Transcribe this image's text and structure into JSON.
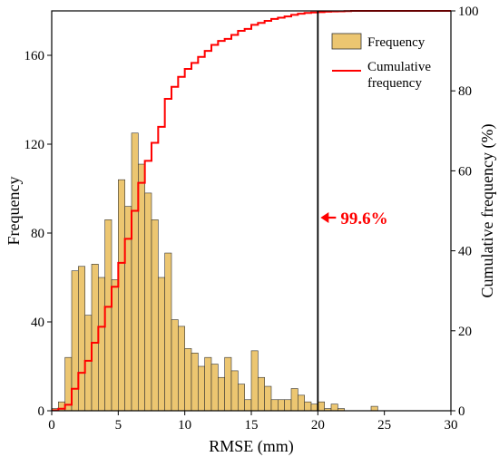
{
  "chart_data": {
    "type": "bar",
    "title": "",
    "xlabel": "RMSE (mm)",
    "ylabel": "Frequency",
    "ylabel_right": "Cumulative frequency (%)",
    "xlim": [
      0,
      30
    ],
    "ylim": [
      0,
      180
    ],
    "ylim_right": [
      0,
      100
    ],
    "x_ticks": [
      0,
      5,
      10,
      15,
      20,
      25,
      30
    ],
    "y_ticks": [
      0,
      40,
      80,
      120,
      160
    ],
    "y_ticks_right": [
      0,
      20,
      40,
      60,
      80,
      100
    ],
    "bin_width": 0.5,
    "bin_starts": [
      0,
      0.5,
      1,
      1.5,
      2,
      2.5,
      3,
      3.5,
      4,
      4.5,
      5,
      5.5,
      6,
      6.5,
      7,
      7.5,
      8,
      8.5,
      9,
      9.5,
      10,
      10.5,
      11,
      11.5,
      12,
      12.5,
      13,
      13.5,
      14,
      14.5,
      15,
      15.5,
      16,
      16.5,
      17,
      17.5,
      18,
      18.5,
      19,
      19.5,
      20,
      20.5,
      21,
      21.5,
      22,
      22.5,
      23,
      23.5,
      24
    ],
    "series": [
      {
        "name": "Frequency",
        "type": "bar",
        "color": "#ecc671",
        "values": [
          1,
          4,
          24,
          63,
          65,
          43,
          66,
          60,
          86,
          59,
          104,
          92,
          125,
          111,
          98,
          86,
          60,
          71,
          41,
          38,
          28,
          26,
          20,
          24,
          21,
          15,
          24,
          18,
          12,
          5,
          27,
          15,
          11,
          5,
          5,
          5,
          10,
          7,
          4,
          3,
          4,
          1,
          3,
          1,
          0,
          0,
          0,
          0,
          2
        ]
      },
      {
        "name": "Cumulative frequency",
        "type": "step",
        "color": "#ff0000",
        "values": [
          0.1,
          0.5,
          1.5,
          5.5,
          9.5,
          12.5,
          17,
          21,
          26,
          31,
          37,
          43,
          50,
          57,
          62.5,
          67,
          71,
          78,
          81,
          83.5,
          85.5,
          87,
          88.5,
          90,
          91.5,
          92.5,
          93,
          94,
          95,
          95.5,
          96.5,
          97,
          97.5,
          98,
          98.3,
          98.6,
          99,
          99.3,
          99.5,
          99.6,
          99.7,
          99.8,
          99.85,
          99.9,
          99.95,
          100,
          100,
          100,
          100
        ]
      }
    ],
    "reference_line": {
      "x": 20
    },
    "annotation": {
      "text": "99.6%",
      "color": "#ff0000"
    },
    "legend": {
      "position": "top-right",
      "items": [
        {
          "label": "Frequency",
          "kind": "patch",
          "color": "#ecc671"
        },
        {
          "label": "Cumulative\nfrequency",
          "kind": "line",
          "color": "#ff0000"
        }
      ]
    },
    "grid": false
  }
}
